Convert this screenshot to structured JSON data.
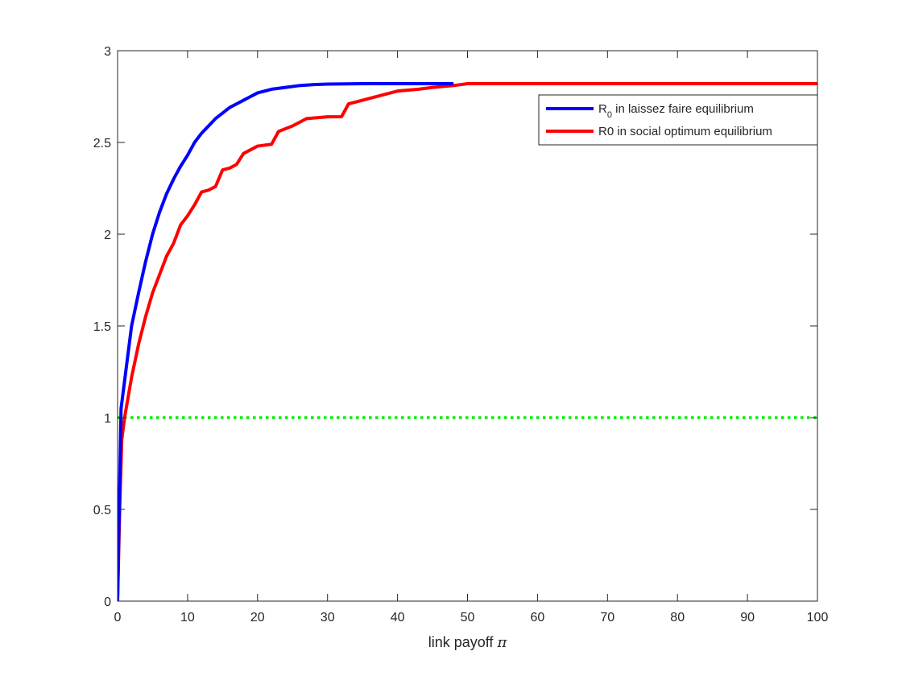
{
  "chart_data": {
    "type": "line",
    "title": "",
    "xlabel": "link payoff",
    "xlabel_symbol": "π",
    "ylabel": "",
    "xlim": [
      0,
      100
    ],
    "ylim": [
      0,
      3
    ],
    "x_ticks": [
      0,
      10,
      20,
      30,
      40,
      50,
      60,
      70,
      80,
      90,
      100
    ],
    "y_ticks": [
      0,
      0.5,
      1,
      1.5,
      2,
      2.5,
      3
    ],
    "y_tick_labels": [
      "0",
      "0.5",
      "1",
      "1.5",
      "2",
      "2.5",
      "3"
    ],
    "grid": false,
    "legend_position": "top-right",
    "series": [
      {
        "name": "R",
        "name_subscript": "0",
        "name_rest": " in laissez faire equilibrium",
        "color": "#0000ff",
        "style": "solid",
        "points": [
          [
            0,
            0
          ],
          [
            0.5,
            1.05
          ],
          [
            1,
            1.2
          ],
          [
            2,
            1.5
          ],
          [
            3,
            1.68
          ],
          [
            4,
            1.85
          ],
          [
            5,
            2.0
          ],
          [
            6,
            2.12
          ],
          [
            7,
            2.22
          ],
          [
            8,
            2.3
          ],
          [
            9,
            2.37
          ],
          [
            10,
            2.43
          ],
          [
            11,
            2.5
          ],
          [
            12,
            2.55
          ],
          [
            13,
            2.59
          ],
          [
            14,
            2.63
          ],
          [
            15,
            2.66
          ],
          [
            16,
            2.69
          ],
          [
            17,
            2.71
          ],
          [
            18,
            2.73
          ],
          [
            19,
            2.75
          ],
          [
            20,
            2.77
          ],
          [
            22,
            2.79
          ],
          [
            24,
            2.8
          ],
          [
            26,
            2.81
          ],
          [
            28,
            2.815
          ],
          [
            30,
            2.818
          ],
          [
            35,
            2.82
          ],
          [
            40,
            2.82
          ],
          [
            48,
            2.82
          ]
        ]
      },
      {
        "name": "R0 in social optimum equilibrium",
        "color": "#ff0000",
        "style": "solid",
        "points": [
          [
            0,
            0
          ],
          [
            0.3,
            0.5
          ],
          [
            0.6,
            0.88
          ],
          [
            1,
            1.0
          ],
          [
            2,
            1.22
          ],
          [
            3,
            1.4
          ],
          [
            4,
            1.55
          ],
          [
            5,
            1.68
          ],
          [
            6,
            1.78
          ],
          [
            7,
            1.88
          ],
          [
            8,
            1.95
          ],
          [
            9,
            2.05
          ],
          [
            10,
            2.1
          ],
          [
            11,
            2.16
          ],
          [
            12,
            2.23
          ],
          [
            13,
            2.24
          ],
          [
            14,
            2.26
          ],
          [
            15,
            2.35
          ],
          [
            16,
            2.36
          ],
          [
            17,
            2.38
          ],
          [
            18,
            2.44
          ],
          [
            20,
            2.48
          ],
          [
            22,
            2.49
          ],
          [
            23,
            2.56
          ],
          [
            25,
            2.59
          ],
          [
            27,
            2.63
          ],
          [
            30,
            2.64
          ],
          [
            32,
            2.64
          ],
          [
            33,
            2.71
          ],
          [
            35,
            2.73
          ],
          [
            38,
            2.76
          ],
          [
            40,
            2.78
          ],
          [
            43,
            2.79
          ],
          [
            45,
            2.8
          ],
          [
            48,
            2.81
          ],
          [
            50,
            2.82
          ],
          [
            100,
            2.82
          ]
        ]
      },
      {
        "name": "",
        "color": "#00ee00",
        "style": "dotted",
        "points": [
          [
            0,
            1
          ],
          [
            100,
            1
          ]
        ]
      }
    ]
  }
}
